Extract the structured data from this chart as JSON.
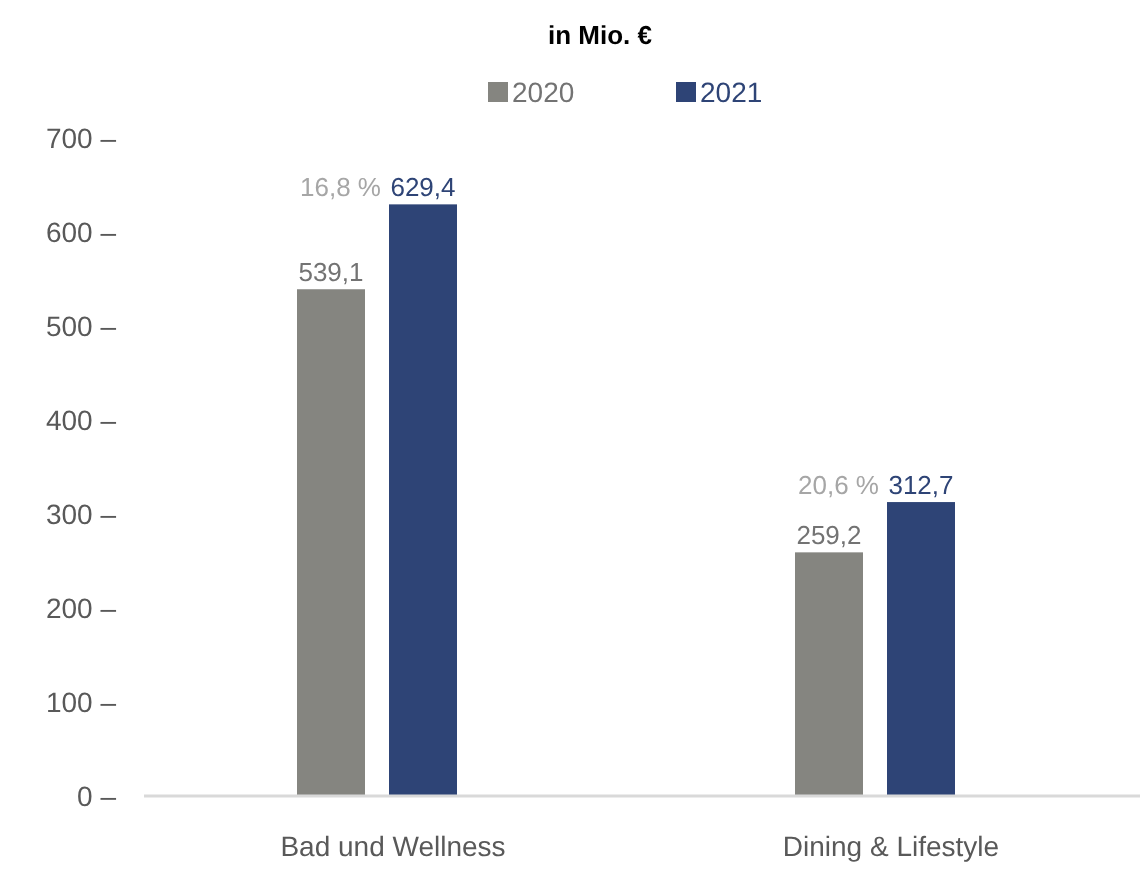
{
  "chart_data": {
    "type": "bar",
    "title": "in Mio. €",
    "categories": [
      "Bad und Wellness",
      "Dining & Lifestyle"
    ],
    "series": [
      {
        "name": "2020",
        "color": "#858580",
        "values": [
          539.1,
          259.2
        ],
        "value_labels": [
          "539,1",
          "259,2"
        ]
      },
      {
        "name": "2021",
        "color": "#2e4476",
        "values": [
          629.4,
          312.7
        ],
        "value_labels": [
          "629,4",
          "312,7"
        ]
      }
    ],
    "ylim": [
      0,
      700
    ],
    "yticks": [
      {
        "value": 0,
        "label": "0 –"
      },
      {
        "value": 100,
        "label": "100 –"
      },
      {
        "value": 200,
        "label": "200 –"
      },
      {
        "value": 300,
        "label": "300 –"
      },
      {
        "value": 400,
        "label": "400 –"
      },
      {
        "value": 500,
        "label": "500 –"
      },
      {
        "value": 600,
        "label": "600 –"
      },
      {
        "value": 700,
        "label": "700 –"
      }
    ],
    "legend": "top",
    "grid": false,
    "annotations": [
      {
        "text": "16,8 %",
        "x": "Bad und Wellness",
        "y": 629.4
      },
      {
        "text": "20,6 %",
        "x": "Dining & Lifestyle",
        "y": 312.7
      }
    ]
  }
}
